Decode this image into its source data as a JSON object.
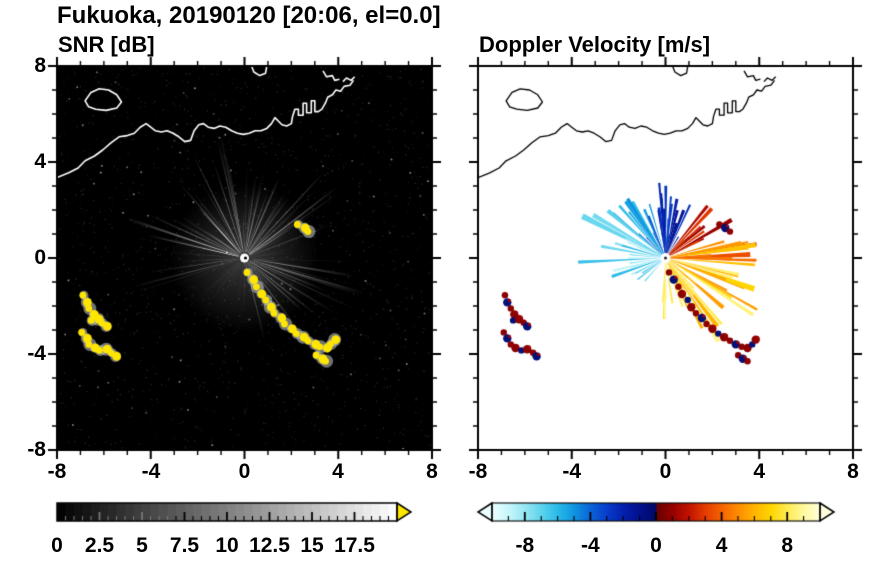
{
  "title": "Fukuoka, 20190120 [20:06, el=0.0]",
  "panels": {
    "snr": {
      "title": "SNR [dB]",
      "colorbar": {
        "min": 0,
        "max": 20,
        "tick_labels": [
          "0",
          "2.5",
          "5",
          "7.5",
          "10",
          "12.5",
          "15",
          "17.5"
        ],
        "tick_values": [
          0,
          2.5,
          5,
          7.5,
          10,
          12.5,
          15,
          17.5
        ],
        "minor_step": 0.5
      }
    },
    "doppler": {
      "title": "Doppler Velocity [m/s]",
      "colorbar": {
        "min": -10,
        "max": 10,
        "tick_labels": [
          "-8",
          "-4",
          "0",
          "4",
          "8"
        ],
        "tick_values": [
          -8,
          -4,
          0,
          4,
          8
        ],
        "minor_step": 1
      }
    }
  },
  "axes": {
    "xlim": [
      -8,
      8
    ],
    "ylim": [
      -8,
      8
    ],
    "xtick_labels": [
      "-8",
      "-4",
      "0",
      "4",
      "8"
    ],
    "ytick_labels": [
      "8",
      "4",
      "0",
      "-4",
      "-8"
    ],
    "minor_tick_step": 1,
    "major_tick_step": 4
  },
  "colors": {
    "background": "#ffffff",
    "frame": "#000000",
    "snr_background": "#000000",
    "coast_snr": "#ffffff",
    "coast_doppler": "#000000",
    "clutter": "#ffe600"
  },
  "chart_data": {
    "type": "heatmap",
    "subtype": "radar_ppi",
    "site": "Fukuoka",
    "date": "20190120",
    "time": "20:06",
    "elevation": 0.0,
    "radar_center_xy": [
      0,
      0
    ],
    "axis_range": [
      -8,
      8
    ],
    "panels_summary": [
      {
        "name": "SNR",
        "units": "dB",
        "scale_min": 0,
        "scale_max": 20,
        "scale_ticks": [
          0,
          2.5,
          5,
          7.5,
          10,
          12.5,
          15,
          17.5
        ]
      },
      {
        "name": "Doppler Velocity",
        "units": "m/s",
        "scale_min": -10,
        "scale_max": 10,
        "scale_ticks": [
          -8,
          -4,
          0,
          4,
          8
        ]
      }
    ],
    "snr_sectors": [
      {
        "a0": 95,
        "a1": 170,
        "n": 30,
        "r0": 1.2,
        "r1": 5.6,
        "i0": 0.2,
        "i1": 0.9
      },
      {
        "a0": 60,
        "a1": 95,
        "n": 13,
        "r0": 1.2,
        "r1": 4.4,
        "i0": 0.15,
        "i1": 0.7
      },
      {
        "a0": 15,
        "a1": 60,
        "n": 15,
        "r0": 1.2,
        "r1": 5.0,
        "i0": 0.15,
        "i1": 0.8
      },
      {
        "a0": -25,
        "a1": 15,
        "n": 11,
        "r0": 1.2,
        "r1": 5.4,
        "i0": 0.12,
        "i1": 0.6
      },
      {
        "a0": -80,
        "a1": -25,
        "n": 16,
        "r0": 1.2,
        "r1": 4.8,
        "i0": 0.15,
        "i1": 0.7
      },
      {
        "a0": 170,
        "a1": 225,
        "n": 9,
        "r0": 1.2,
        "r1": 5.6,
        "i0": 0.08,
        "i1": 0.45
      },
      {
        "a0": 225,
        "a1": 285,
        "n": 7,
        "r0": 0.8,
        "r1": 3.2,
        "i0": 0.06,
        "i1": 0.3
      },
      {
        "a0": 0,
        "a1": 360,
        "n": 46,
        "r0": 0.6,
        "r1": 2.6,
        "i0": 0.04,
        "i1": 0.18
      }
    ],
    "doppler_sectors": [
      {
        "a0": 80,
        "a1": 100,
        "n": 16,
        "r0": 0.9,
        "r1": 3.6,
        "v0": -3.5,
        "v1": -1.2
      },
      {
        "a0": 100,
        "a1": 140,
        "n": 14,
        "r0": 0.9,
        "r1": 3.2,
        "v0": -6.5,
        "v1": -3.0
      },
      {
        "a0": 140,
        "a1": 200,
        "n": 18,
        "r0": 0.9,
        "r1": 4.0,
        "v0": -9.5,
        "v1": -5.5
      },
      {
        "a0": 58,
        "a1": 80,
        "n": 8,
        "r0": 0.9,
        "r1": 2.8,
        "v0": -3.0,
        "v1": -0.8
      },
      {
        "a0": 25,
        "a1": 58,
        "n": 14,
        "r0": 0.9,
        "r1": 3.4,
        "v0": 0.8,
        "v1": 4.5
      },
      {
        "a0": -12,
        "a1": 25,
        "n": 13,
        "r0": 0.9,
        "r1": 4.0,
        "v0": 2.0,
        "v1": 6.5
      },
      {
        "a0": -68,
        "a1": -12,
        "n": 26,
        "r0": 1.0,
        "r1": 4.8,
        "v0": 5.0,
        "v1": 9.0
      },
      {
        "a0": -95,
        "a1": -68,
        "n": 9,
        "r0": 0.9,
        "r1": 2.6,
        "v0": 6.5,
        "v1": 9.5
      },
      {
        "a0": 205,
        "a1": 250,
        "n": 5,
        "r0": 0.7,
        "r1": 2.0,
        "v0": -8.5,
        "v1": -6.0
      }
    ],
    "doppler_colormap": [
      [
        -10,
        "#eaffff"
      ],
      [
        -9,
        "#c6f6fb"
      ],
      [
        -8,
        "#97e7f3"
      ],
      [
        -7,
        "#5cd3ee"
      ],
      [
        -6,
        "#2ab9e8"
      ],
      [
        -5,
        "#0f93df"
      ],
      [
        -4,
        "#0b64d8"
      ],
      [
        -3,
        "#073cc9"
      ],
      [
        -2,
        "#0420ad"
      ],
      [
        -1,
        "#02108c"
      ],
      [
        -0.05,
        "#010a66"
      ],
      [
        0.05,
        "#6b0000"
      ],
      [
        1,
        "#970000"
      ],
      [
        2,
        "#c31400"
      ],
      [
        3,
        "#e43d00"
      ],
      [
        4,
        "#f66500"
      ],
      [
        5,
        "#fe8d00"
      ],
      [
        6,
        "#ffb500"
      ],
      [
        7,
        "#ffd600"
      ],
      [
        8,
        "#ffeb55"
      ],
      [
        9,
        "#fff9a0"
      ],
      [
        10,
        "#ffffdc"
      ]
    ],
    "clutter_chains": [
      [
        [
          -6.85,
          -1.55
        ],
        [
          -6.75,
          -1.85
        ],
        [
          -6.6,
          -2.1
        ],
        [
          -6.45,
          -2.35
        ],
        [
          -6.5,
          -2.6
        ],
        [
          -6.25,
          -2.55
        ],
        [
          -6.05,
          -2.7
        ],
        [
          -5.9,
          -2.85
        ]
      ],
      [
        [
          -6.9,
          -3.1
        ],
        [
          -6.75,
          -3.35
        ],
        [
          -6.6,
          -3.6
        ],
        [
          -6.4,
          -3.75
        ],
        [
          -6.15,
          -3.85
        ],
        [
          -5.9,
          -3.8
        ],
        [
          -5.65,
          -3.95
        ],
        [
          -5.5,
          -4.1
        ]
      ],
      [
        [
          0.15,
          -0.6
        ],
        [
          0.35,
          -0.9
        ],
        [
          0.55,
          -1.2
        ],
        [
          0.7,
          -1.5
        ],
        [
          0.95,
          -1.75
        ],
        [
          1.1,
          -2.05
        ],
        [
          1.3,
          -2.3
        ],
        [
          1.55,
          -2.5
        ],
        [
          1.75,
          -2.75
        ],
        [
          2.0,
          -2.95
        ],
        [
          2.25,
          -3.15
        ],
        [
          2.5,
          -3.3
        ],
        [
          2.75,
          -3.45
        ],
        [
          3.0,
          -3.6
        ],
        [
          3.25,
          -3.7
        ],
        [
          3.5,
          -3.75
        ],
        [
          3.7,
          -3.6
        ],
        [
          3.85,
          -3.4
        ]
      ],
      [
        [
          3.1,
          -4.05
        ],
        [
          3.3,
          -4.2
        ],
        [
          3.5,
          -4.3
        ]
      ],
      [
        [
          2.3,
          1.4
        ],
        [
          2.55,
          1.25
        ],
        [
          2.75,
          1.1
        ]
      ]
    ],
    "coastline": {
      "mainland": [
        [
          -8,
          3.35
        ],
        [
          -7.5,
          3.55
        ],
        [
          -7.1,
          3.75
        ],
        [
          -6.8,
          4.05
        ],
        [
          -6.4,
          4.25
        ],
        [
          -6.05,
          4.5
        ],
        [
          -5.7,
          4.8
        ],
        [
          -5.35,
          5.05
        ],
        [
          -5,
          5.1
        ],
        [
          -4.7,
          5.2
        ],
        [
          -4.45,
          5.45
        ],
        [
          -4.2,
          5.6
        ],
        [
          -4,
          5.45
        ],
        [
          -3.8,
          5.3
        ],
        [
          -3.55,
          5.25
        ],
        [
          -3.3,
          5.3
        ],
        [
          -3.05,
          5.2
        ],
        [
          -2.8,
          5.05
        ],
        [
          -2.55,
          4.85
        ],
        [
          -2.3,
          4.9
        ],
        [
          -2.15,
          5.3
        ],
        [
          -1.95,
          5.55
        ],
        [
          -1.75,
          5.6
        ],
        [
          -1.55,
          5.45
        ],
        [
          -1.3,
          5.4
        ],
        [
          -1.05,
          5.5
        ],
        [
          -0.8,
          5.45
        ],
        [
          -0.55,
          5.3
        ],
        [
          -0.3,
          5.2
        ],
        [
          -0.05,
          5.15
        ],
        [
          0.2,
          5.2
        ],
        [
          0.45,
          5.3
        ],
        [
          0.7,
          5.3
        ],
        [
          0.95,
          5.4
        ],
        [
          1.15,
          5.6
        ],
        [
          1.3,
          5.85
        ],
        [
          1.45,
          5.7
        ],
        [
          1.6,
          5.55
        ],
        [
          1.8,
          5.5
        ],
        [
          2,
          5.6
        ],
        [
          2.05,
          5.9
        ],
        [
          2.15,
          6.2
        ],
        [
          2.3,
          6.2
        ],
        [
          2.3,
          5.95
        ],
        [
          2.5,
          5.95
        ],
        [
          2.5,
          6.45
        ],
        [
          2.65,
          6.45
        ],
        [
          2.65,
          6.05
        ],
        [
          2.85,
          6.05
        ],
        [
          2.85,
          6.55
        ],
        [
          3,
          6.55
        ],
        [
          3,
          6.1
        ],
        [
          3.15,
          6.1
        ],
        [
          3.3,
          6.2
        ],
        [
          3.45,
          6.45
        ],
        [
          3.55,
          6.7
        ],
        [
          3.75,
          6.8
        ],
        [
          3.9,
          7
        ],
        [
          4.1,
          6.95
        ],
        [
          4.25,
          7.15
        ],
        [
          4.5,
          7.2
        ],
        [
          4.65,
          7.4
        ]
      ],
      "islands": [
        [
          [
            -6.8,
            6.55
          ],
          [
            -6.55,
            6.9
          ],
          [
            -6.2,
            7.05
          ],
          [
            -5.8,
            7.0
          ],
          [
            -5.45,
            6.8
          ],
          [
            -5.25,
            6.5
          ],
          [
            -5.45,
            6.25
          ],
          [
            -5.9,
            6.15
          ],
          [
            -6.35,
            6.2
          ],
          [
            -6.65,
            6.3
          ]
        ]
      ],
      "extras": [
        [
          [
            0.3,
            8.0
          ],
          [
            0.4,
            7.75
          ],
          [
            0.65,
            7.6
          ],
          [
            0.9,
            7.7
          ],
          [
            0.95,
            8.0
          ]
        ],
        [
          [
            3.35,
            7.8
          ],
          [
            3.5,
            7.55
          ],
          [
            3.75,
            7.6
          ],
          [
            3.85,
            7.4
          ],
          [
            4.05,
            7.45
          ]
        ],
        [
          [
            4.2,
            7.35
          ],
          [
            4.35,
            7.5
          ],
          [
            4.55,
            7.4
          ],
          [
            4.7,
            7.55
          ]
        ]
      ]
    }
  }
}
